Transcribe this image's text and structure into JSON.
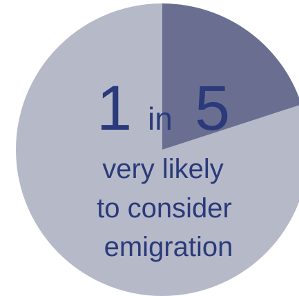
{
  "chart_data": {
    "type": "pie",
    "slices": [
      {
        "label": "very likely to consider emigration",
        "value": 20,
        "color": "#6a6f92"
      },
      {
        "label": "",
        "value": 80,
        "color": "#b6b9c8"
      }
    ],
    "annotation": {
      "num1": "1",
      "word": "in",
      "num2": "5",
      "line1": "very likely",
      "line2": "to consider",
      "line3": "emigration"
    },
    "legend": "none",
    "colors": {
      "highlight": "#6a6f92",
      "remainder": "#b6b9c8",
      "text": "#2a3a7a"
    }
  }
}
